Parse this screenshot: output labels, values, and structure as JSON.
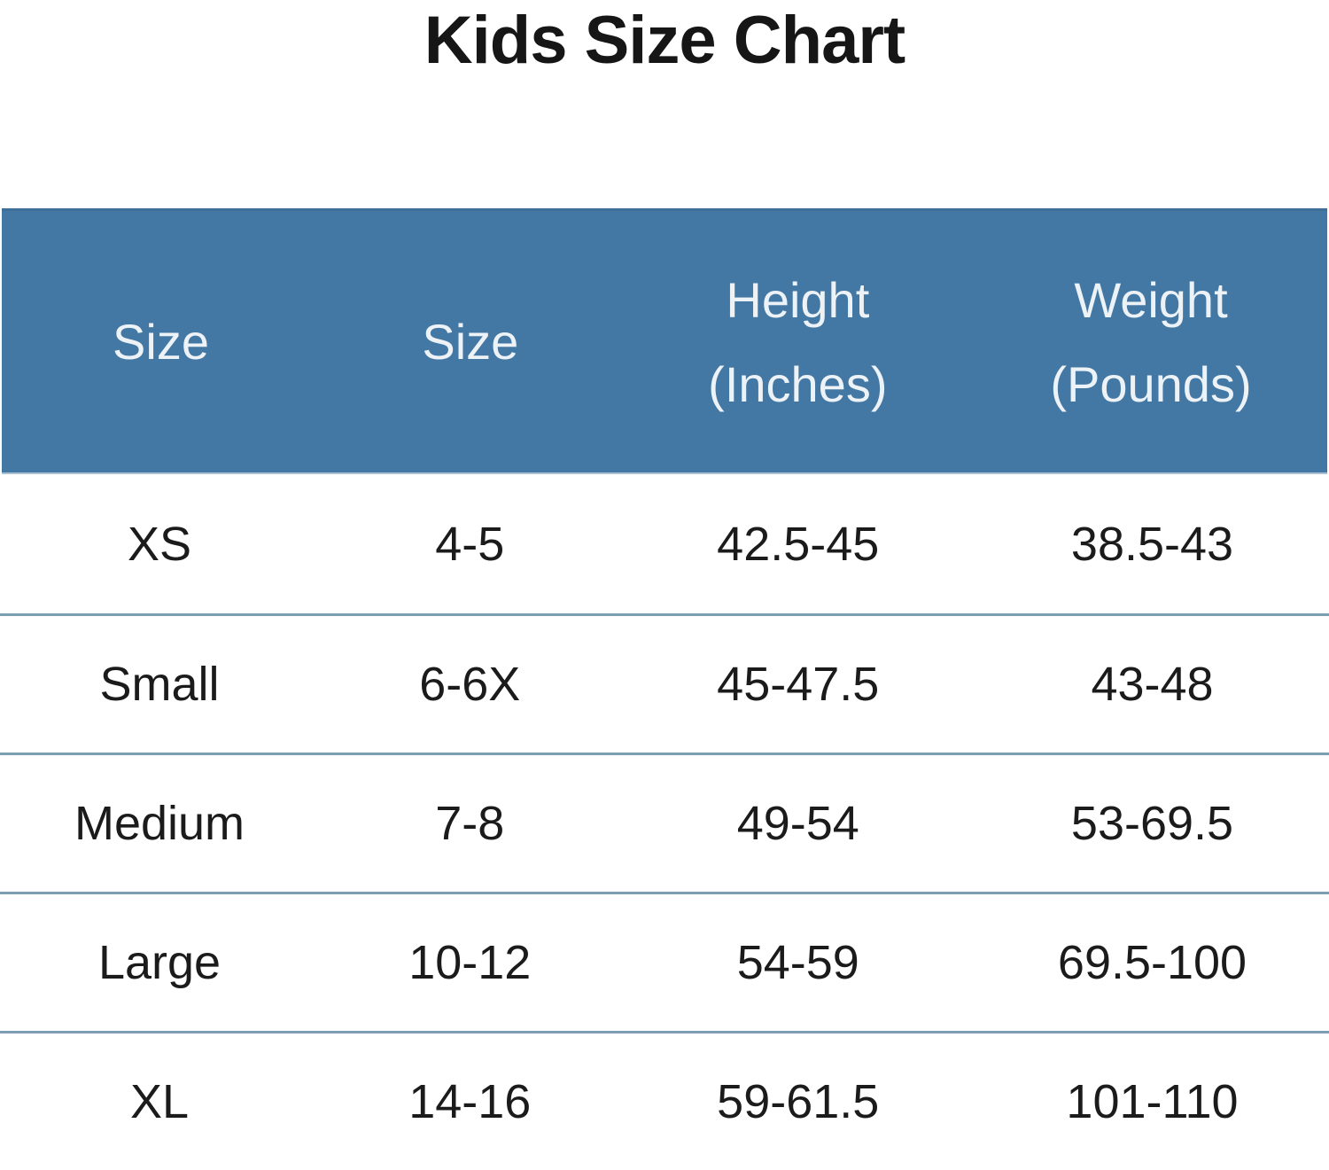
{
  "title": "Kids Size Chart",
  "table": {
    "header": {
      "cells": [
        {
          "line1": "Size"
        },
        {
          "line1": "Size"
        },
        {
          "line1": "Height",
          "line2": "(Inches)"
        },
        {
          "line1": "Weight",
          "line2": "(Pounds)"
        }
      ]
    },
    "rows": [
      {
        "cells": [
          "XS",
          "4-5",
          "42.5-45",
          "38.5-43"
        ]
      },
      {
        "cells": [
          "Small",
          "6-6X",
          "45-47.5",
          "43-48"
        ]
      },
      {
        "cells": [
          "Medium",
          "7-8",
          "49-54",
          "53-69.5"
        ]
      },
      {
        "cells": [
          "Large",
          "10-12",
          "54-59",
          "69.5-100"
        ]
      },
      {
        "cells": [
          "XL",
          "14-16",
          "59-61.5",
          "101-110"
        ]
      }
    ],
    "colors": {
      "header_bg": "#4478A4",
      "header_text": "#ECF2F6",
      "row_divider": "#7C9DB4",
      "body_text": "#1B1B1B",
      "title_text": "#161616"
    }
  },
  "chart_data": {
    "type": "table",
    "title": "Kids Size Chart",
    "columns": [
      "Size",
      "Size",
      "Height (Inches)",
      "Weight (Pounds)"
    ],
    "rows": [
      [
        "XS",
        "4-5",
        "42.5-45",
        "38.5-43"
      ],
      [
        "Small",
        "6-6X",
        "45-47.5",
        "43-48"
      ],
      [
        "Medium",
        "7-8",
        "49-54",
        "53-69.5"
      ],
      [
        "Large",
        "10-12",
        "54-59",
        "69.5-100"
      ],
      [
        "XL",
        "14-16",
        "59-61.5",
        "101-110"
      ]
    ],
    "layout": {
      "header_position": "top",
      "row_separators": true,
      "column_fractions": [
        0.24,
        0.227,
        0.267,
        0.266
      ]
    }
  }
}
